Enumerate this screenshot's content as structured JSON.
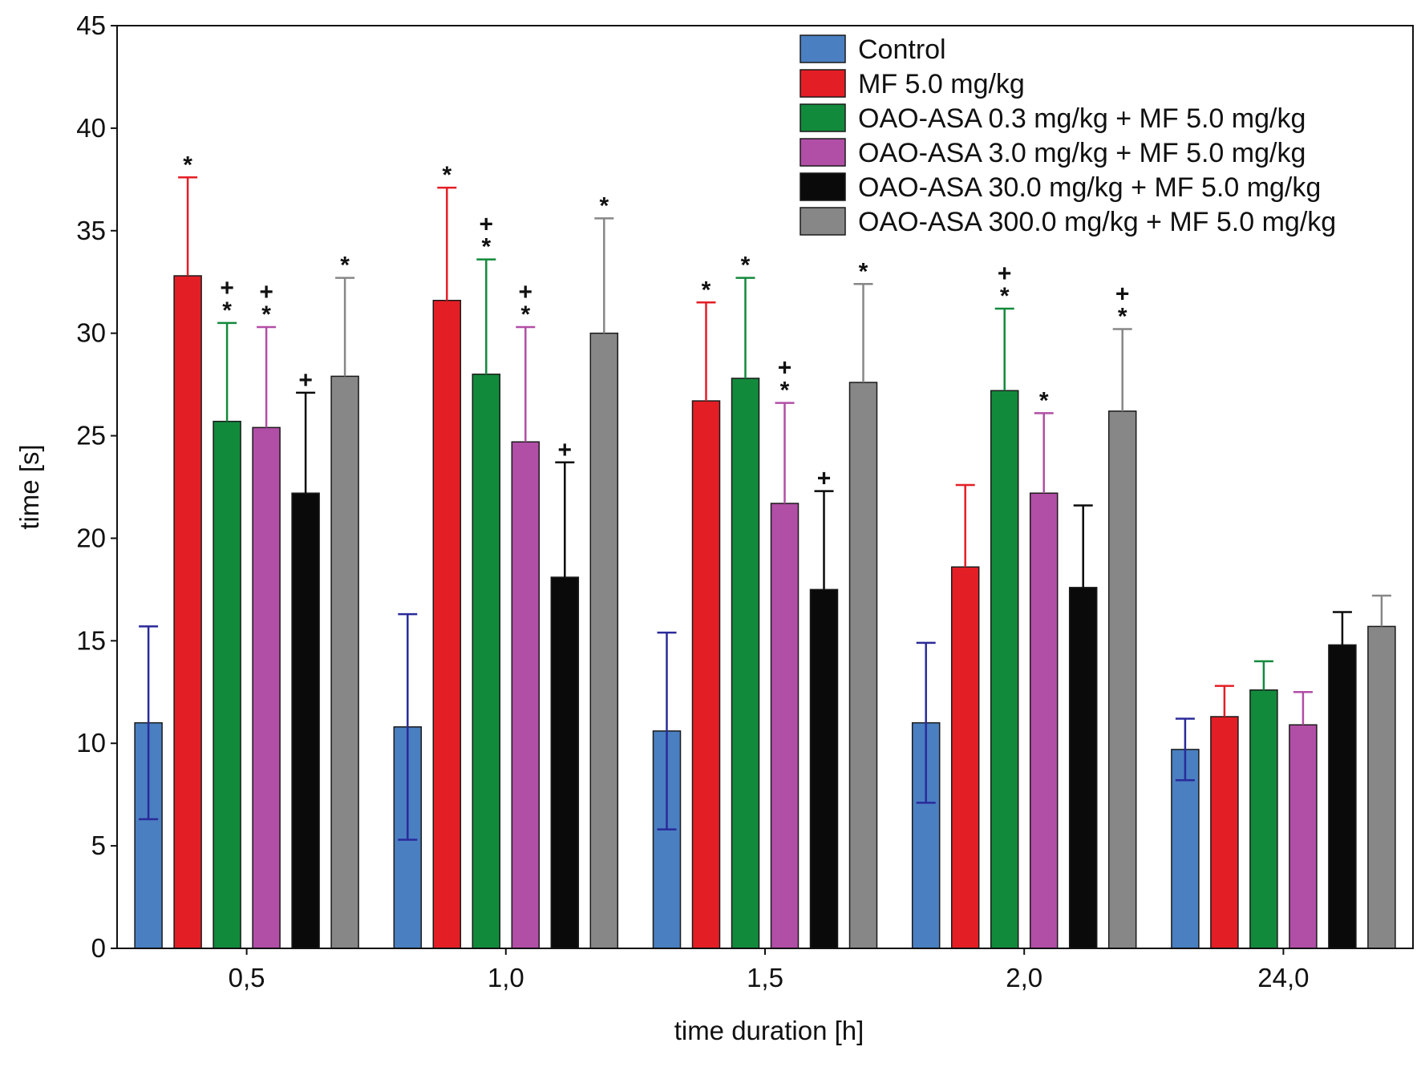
{
  "chart_data": {
    "type": "bar",
    "title": "",
    "xlabel": "time duration [h]",
    "ylabel": "time [s]",
    "ylim": [
      0,
      45
    ],
    "yticks": [
      0,
      5,
      10,
      15,
      20,
      25,
      30,
      35,
      40,
      45
    ],
    "grid": false,
    "legend_position": "top-right",
    "categories": [
      "0,5",
      "1,0",
      "1,5",
      "2,0",
      "24,0"
    ],
    "series": [
      {
        "name": "Control",
        "color": "#4a7fc1",
        "error_color": "#2a2a9a",
        "values": [
          11.0,
          10.8,
          10.6,
          11.0,
          9.7
        ],
        "errors": [
          4.7,
          5.5,
          4.8,
          3.9,
          1.5
        ],
        "symmetric_error": true,
        "markers": [
          "",
          "",
          "",
          "",
          ""
        ]
      },
      {
        "name": "MF 5.0 mg/kg",
        "color": "#e41e25",
        "error_color": "#e41e25",
        "values": [
          32.8,
          31.6,
          26.7,
          18.6,
          11.3
        ],
        "errors": [
          4.8,
          5.5,
          4.8,
          4.0,
          1.5
        ],
        "symmetric_error": false,
        "markers": [
          "*",
          "*",
          "*",
          "",
          ""
        ]
      },
      {
        "name": "OAO-ASA 0.3 mg/kg + MF 5.0 mg/kg",
        "color": "#128a3c",
        "error_color": "#128a3c",
        "values": [
          25.7,
          28.0,
          27.8,
          27.2,
          12.6
        ],
        "errors": [
          4.8,
          5.6,
          4.9,
          4.0,
          1.4
        ],
        "symmetric_error": false,
        "markers": [
          "+\n*",
          "+\n*",
          "*",
          "+\n*",
          ""
        ]
      },
      {
        "name": "OAO-ASA 3.0 mg/kg + MF 5.0 mg/kg",
        "color": "#b14ea6",
        "error_color": "#b14ea6",
        "values": [
          25.4,
          24.7,
          21.7,
          22.2,
          10.9
        ],
        "errors": [
          4.9,
          5.6,
          4.9,
          3.9,
          1.6
        ],
        "symmetric_error": false,
        "markers": [
          "+\n*",
          "+\n*",
          "+\n*",
          "*",
          ""
        ]
      },
      {
        "name": "OAO-ASA 30.0 mg/kg + MF 5.0 mg/kg",
        "color": "#0a0a0a",
        "error_color": "#0a0a0a",
        "values": [
          22.2,
          18.1,
          17.5,
          17.6,
          14.8
        ],
        "errors": [
          4.9,
          5.6,
          4.8,
          4.0,
          1.6
        ],
        "symmetric_error": false,
        "markers": [
          "+",
          "+",
          "+",
          "",
          ""
        ]
      },
      {
        "name": "OAO-ASA 300.0 mg/kg + MF 5.0 mg/kg",
        "color": "#878787",
        "error_color": "#878787",
        "values": [
          27.9,
          30.0,
          27.6,
          26.2,
          15.7
        ],
        "errors": [
          4.8,
          5.6,
          4.8,
          4.0,
          1.5
        ],
        "symmetric_error": false,
        "markers": [
          "*",
          "*",
          "*",
          "+\n*",
          ""
        ]
      }
    ]
  }
}
